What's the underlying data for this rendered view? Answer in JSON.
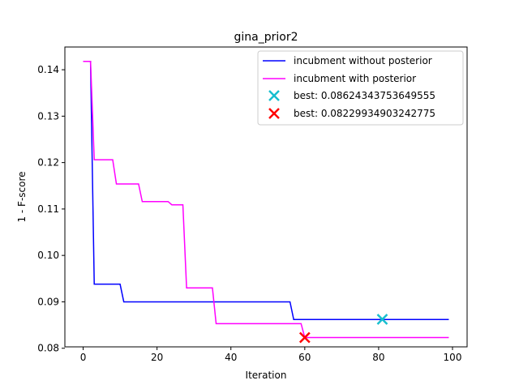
{
  "chart_data": {
    "type": "line",
    "title": "gina_prior2",
    "xlabel": "Iteration",
    "ylabel": "1 - F-score",
    "xlim": [
      -4.95,
      103.95
    ],
    "ylim": [
      0.0803,
      0.1449
    ],
    "x_ticks": [
      0,
      20,
      40,
      60,
      80,
      100
    ],
    "y_ticks": [
      0.08,
      0.09,
      0.1,
      0.11,
      0.12,
      0.13,
      0.14
    ],
    "y_tick_labels": [
      "0.08",
      "0.09",
      "0.10",
      "0.11",
      "0.12",
      "0.13",
      "0.14"
    ],
    "grid": false,
    "legend_position": "top-right",
    "series": [
      {
        "name": "incubment without posterior",
        "color": "#0000ff",
        "x": [
          0,
          1,
          2,
          3,
          10,
          11,
          56,
          57,
          99
        ],
        "y": [
          0.1418,
          0.1418,
          0.1418,
          0.0938,
          0.0938,
          0.09,
          0.09,
          0.0862,
          0.0862
        ]
      },
      {
        "name": "incubment with posterior",
        "color": "#ff00ff",
        "x": [
          0,
          1,
          2,
          3,
          8,
          9,
          15,
          16,
          23,
          24,
          27,
          28,
          35,
          36,
          59,
          60,
          99
        ],
        "y": [
          0.1418,
          0.1418,
          0.1418,
          0.1206,
          0.1206,
          0.1154,
          0.1154,
          0.1116,
          0.1116,
          0.1109,
          0.1109,
          0.093,
          0.093,
          0.0853,
          0.0853,
          0.0823,
          0.0823
        ]
      }
    ],
    "best_markers": [
      {
        "label": "best: 0.08624343753649555",
        "x": 81,
        "y": 0.08624343753649555,
        "color": "#17becf"
      },
      {
        "label": "best: 0.08229934903242775",
        "x": 60,
        "y": 0.08229934903242775,
        "color": "#ff0000"
      }
    ]
  }
}
